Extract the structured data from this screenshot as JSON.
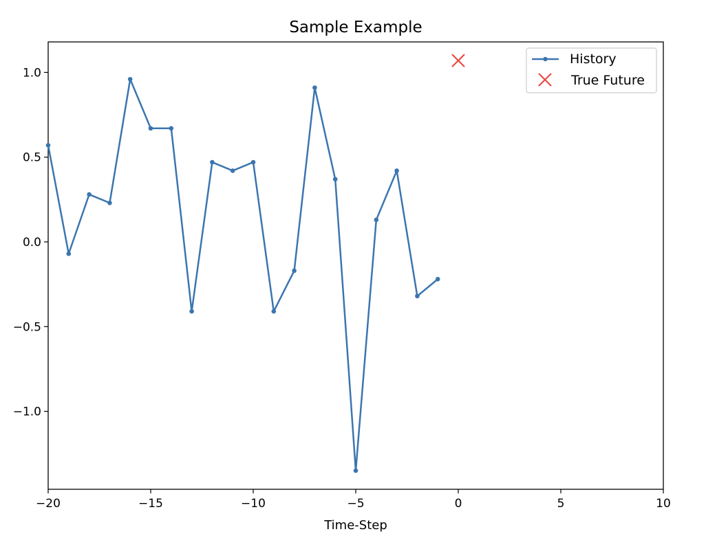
{
  "chart_data": {
    "type": "line",
    "title": "Sample Example",
    "xlabel": "Time-Step",
    "ylabel": "",
    "xlim": [
      -20,
      10
    ],
    "ylim": [
      -1.46,
      1.18
    ],
    "xticks": [
      -20,
      -15,
      -10,
      -5,
      0,
      5,
      10
    ],
    "xtick_labels": [
      "−20",
      "−15",
      "−10",
      "−5",
      "0",
      "5",
      "10"
    ],
    "yticks": [
      -1.0,
      -0.5,
      0.0,
      0.5,
      1.0
    ],
    "ytick_labels": [
      "−1.0",
      "−0.5",
      "0.0",
      "0.5",
      "1.0"
    ],
    "grid": false,
    "legend_position": "upper right",
    "series": [
      {
        "name": "History",
        "kind": "line-with-point-markers",
        "color": "#3b75af",
        "x": [
          -20,
          -19,
          -18,
          -17,
          -16,
          -15,
          -14,
          -13,
          -12,
          -11,
          -10,
          -9,
          -8,
          -7,
          -6,
          -5,
          -4,
          -3,
          -2,
          -1
        ],
        "y": [
          0.57,
          -0.07,
          0.28,
          0.23,
          0.96,
          0.67,
          0.67,
          -0.41,
          0.47,
          0.42,
          0.47,
          -0.41,
          -0.17,
          0.91,
          0.37,
          -1.35,
          0.13,
          0.42,
          -0.32,
          -0.22
        ]
      },
      {
        "name": "True Future",
        "kind": "x-marker",
        "color": "#e8453c",
        "x": [
          0
        ],
        "y": [
          1.07
        ]
      }
    ]
  }
}
